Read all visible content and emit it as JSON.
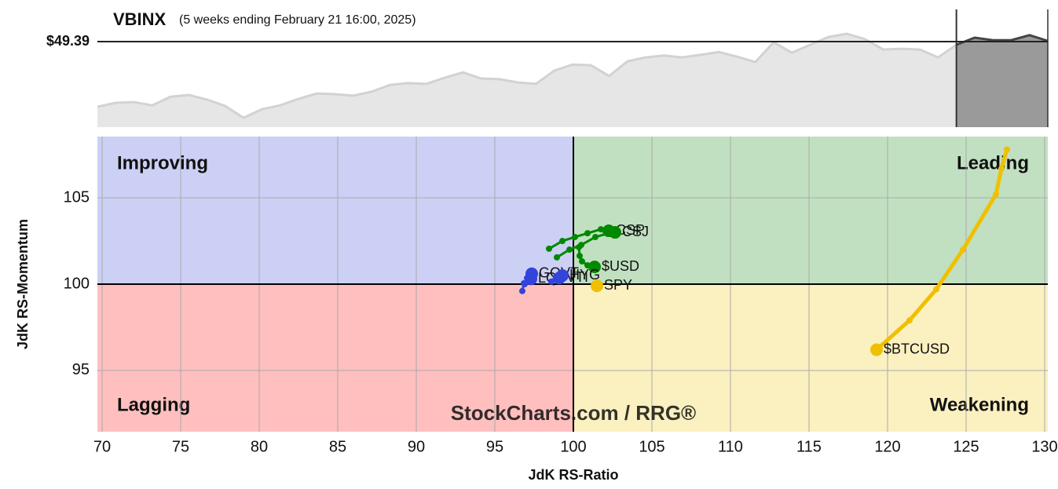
{
  "chart_data": [
    {
      "type": "area",
      "title": "VBINX",
      "subtitle": "(5 weeks ending February 21 16:00, 2025)",
      "color": "#e6e6e6",
      "highlight_color": "#9a9a9a",
      "ylim": [
        47.0,
        50.29
      ],
      "price_line": {
        "value": 49.39,
        "label": "$49.39"
      },
      "values": [
        47.57,
        47.68,
        47.7,
        47.61,
        47.85,
        47.9,
        47.77,
        47.59,
        47.26,
        47.5,
        47.61,
        47.79,
        47.94,
        47.92,
        47.88,
        47.99,
        48.18,
        48.23,
        48.21,
        48.38,
        48.53,
        48.36,
        48.34,
        48.25,
        48.21,
        48.58,
        48.75,
        48.73,
        48.43,
        48.84,
        48.95,
        49.0,
        48.95,
        49.02,
        49.1,
        48.97,
        48.82,
        49.37,
        49.08,
        49.3,
        49.52,
        49.61,
        49.46,
        49.17,
        49.19,
        49.17,
        48.95,
        49.3,
        49.5,
        49.43,
        49.43,
        49.57,
        49.41
      ]
    },
    {
      "type": "scatter",
      "xlabel": "JdK RS-Ratio",
      "ylabel": "JdK RS-Momentum",
      "watermark": "StockCharts.com / RRG®",
      "xlim": [
        69.7,
        130.2
      ],
      "ylim": [
        91.45,
        108.55
      ],
      "xticks": [
        70,
        75,
        80,
        85,
        90,
        95,
        100,
        105,
        110,
        115,
        120,
        125,
        130
      ],
      "yticks": [
        95,
        100,
        105
      ],
      "grid": true,
      "reference_lines": {
        "x": 100,
        "y": 100
      },
      "quadrants": [
        {
          "name": "Improving",
          "corner": "top-left",
          "fill": "#ccd0f5",
          "color": "#3b46d9"
        },
        {
          "name": "Leading",
          "corner": "top-right",
          "fill": "#c1e0c1",
          "color": "#0a7a0a"
        },
        {
          "name": "Lagging",
          "corner": "bottom-left",
          "fill": "#ffbfbf",
          "color": "#e00000"
        },
        {
          "name": "Weakening",
          "corner": "bottom-right",
          "fill": "#fbf0c0",
          "color": "#f0c000"
        }
      ],
      "series": [
        {
          "name": "$BTCUSD",
          "color": "#f0c000",
          "x": [
            127.6,
            127.25,
            126.9,
            124.8,
            123.1,
            121.4,
            119.3
          ],
          "values": [
            107.8,
            106.7,
            105.2,
            102.0,
            99.7,
            97.9,
            96.2
          ]
        },
        {
          "name": "SPY",
          "color": "#f0c000",
          "x": [
            101.5
          ],
          "values": [
            99.9
          ]
        },
        {
          "name": "CSP",
          "color": "#008800",
          "x": [
            98.45,
            99.3,
            100.1,
            100.9,
            101.75,
            102.25
          ],
          "values": [
            102.05,
            102.5,
            102.73,
            102.95,
            103.18,
            103.09
          ]
        },
        {
          "name": "CSJ",
          "color": "#008800",
          "x": [
            98.95,
            99.75,
            100.5,
            101.4,
            102.25,
            102.65
          ],
          "values": [
            101.55,
            102.0,
            102.27,
            102.73,
            102.95,
            103.0
          ]
        },
        {
          "name": "$USD",
          "color": "#008800",
          "x": [
            100.35,
            100.4,
            100.55,
            100.9,
            101.35
          ],
          "values": [
            102.14,
            101.64,
            101.32,
            101.09,
            101.0
          ]
        },
        {
          "name": "GOVT",
          "color": "#3344dd",
          "x": [
            96.75,
            96.85,
            97.05,
            97.35
          ],
          "values": [
            99.6,
            100.05,
            100.35,
            100.6
          ]
        },
        {
          "name": "LQD",
          "color": "#3344dd",
          "x": [
            96.9,
            97.1,
            97.3
          ],
          "values": [
            100.0,
            100.2,
            100.3
          ]
        },
        {
          "name": "VTI",
          "color": "#3344dd",
          "x": [
            98.6,
            98.85,
            99.1
          ],
          "values": [
            100.15,
            100.25,
            100.35
          ]
        },
        {
          "name": "HYG",
          "color": "#3344dd",
          "x": [
            99.2,
            99.3
          ],
          "values": [
            100.45,
            100.5
          ]
        }
      ]
    }
  ]
}
